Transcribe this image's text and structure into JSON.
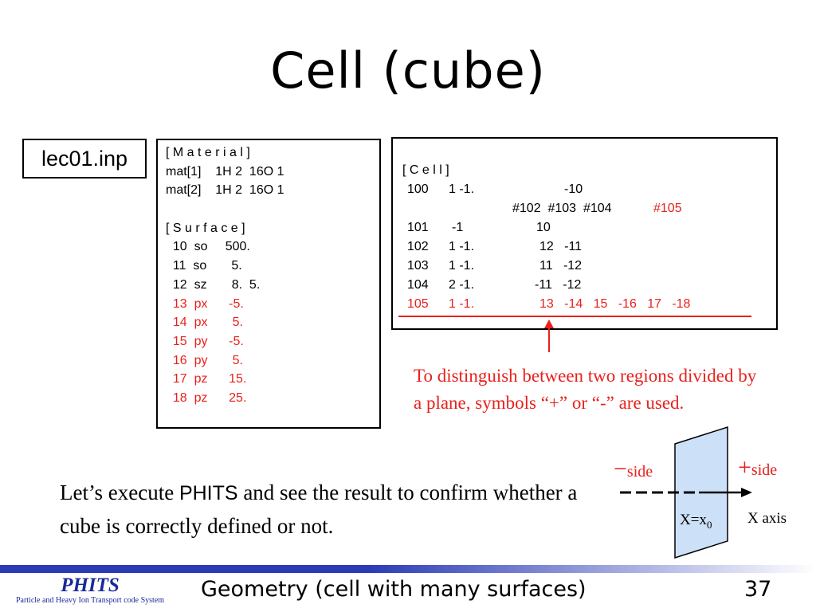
{
  "slide": {
    "title": "Cell (cube)",
    "file_label": "lec01.inp"
  },
  "material_box": {
    "lines": [
      {
        "text": "[ M a t e r i a l ]",
        "color": "black"
      },
      {
        "text": "mat[1]    1H 2  16O 1",
        "color": "black"
      },
      {
        "text": "mat[2]    1H 2  16O 1",
        "color": "black"
      },
      {
        "text": "",
        "color": "black"
      },
      {
        "text": "[ S u r f a c e ]",
        "color": "black"
      },
      {
        "text": "  10  so     500.",
        "color": "black"
      },
      {
        "text": "  11  so       5.",
        "color": "black"
      },
      {
        "text": "  12  sz       8.  5.",
        "color": "black"
      },
      {
        "text": "  13  px      -5.",
        "color": "red"
      },
      {
        "text": "  14  px       5.",
        "color": "red"
      },
      {
        "text": "  15  py      -5.",
        "color": "red"
      },
      {
        "text": "  16  py       5.",
        "color": "red"
      },
      {
        "text": "  17  pz      15.",
        "color": "red"
      },
      {
        "text": "  18  pz      25.",
        "color": "red"
      }
    ]
  },
  "cell_box": {
    "header": "[ C e l l ]",
    "rows": [
      {
        "id": "100",
        "mat": "1 -1.",
        "geom": "-10"
      },
      {
        "cont": "#102  #103  #104",
        "cont_red": "#105"
      },
      {
        "id": "101",
        "mat": "-1",
        "geom": "10"
      },
      {
        "id": "102",
        "mat": "1 -1.",
        "geom": "12   -11"
      },
      {
        "id": "103",
        "mat": "1 -1.",
        "geom": "11   -12"
      },
      {
        "id": "104",
        "mat": "2 -1.",
        "geom": "-11   -12"
      },
      {
        "id": "105",
        "mat": "1 -1.",
        "geom": "13   -14   15   -16   17   -18",
        "red": true
      }
    ]
  },
  "note": "To distinguish between two regions divided by a plane, symbols “+” or “-” are used.",
  "body": {
    "part1": "Let’s execute ",
    "part2": "PHITS",
    "part3": " and see the result to confirm whether a cube is correctly defined or not."
  },
  "diagram": {
    "minus_symbol": "−",
    "minus_text": "side",
    "plus_symbol": "+",
    "plus_text": "side",
    "plane_label_main": "X=x",
    "plane_label_sub": "0",
    "axis_label": "X axis",
    "plane_color": "#cce0f7",
    "arrow_color": "#000000"
  },
  "footer": {
    "logo": "PHITS",
    "logo_sub": "Particle and Heavy Ion Transport code System",
    "title": "Geometry (cell with many surfaces)",
    "page_number": "37",
    "bar_color": "#2b3bb5"
  }
}
